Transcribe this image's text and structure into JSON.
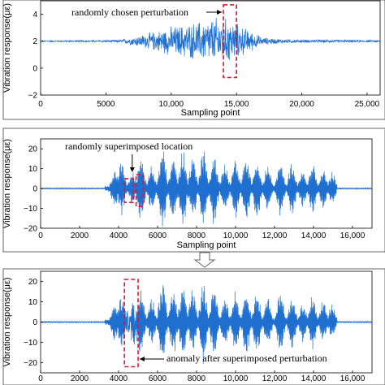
{
  "chart_data": [
    {
      "type": "line",
      "panel": "top",
      "ylabel": "Vibration response(με)",
      "xlabel": "Sampling point",
      "xlim": [
        0,
        26000
      ],
      "ylim": [
        -2,
        5
      ],
      "xticks": [
        0,
        5000,
        10000,
        15000,
        20000,
        25000
      ],
      "xtick_labels": [
        "0",
        "5000",
        "10,000",
        "15,000",
        "20,000",
        "25,000"
      ],
      "yticks": [
        -2,
        0,
        2,
        4
      ],
      "ytick_labels": [
        "−2",
        "0",
        "2",
        "4"
      ],
      "series": [
        {
          "baseline": 2,
          "color": "#1f6fd1",
          "envelope": [
            [
              0,
              0.05
            ],
            [
              6000,
              0.1
            ],
            [
              8000,
              0.6
            ],
            [
              10000,
              1.2
            ],
            [
              12000,
              1.6
            ],
            [
              13500,
              2.0
            ],
            [
              14500,
              1.8
            ],
            [
              16000,
              0.9
            ],
            [
              17000,
              0.3
            ],
            [
              19000,
              0.15
            ],
            [
              26000,
              0.08
            ]
          ]
        }
      ],
      "annotation": {
        "text": "randomly chosen perturbation",
        "box_x": [
          14000,
          15000
        ],
        "box_y": [
          -0.7,
          4.7
        ]
      }
    },
    {
      "type": "line",
      "panel": "middle",
      "ylabel": "Vibration response(με)",
      "xlabel": "Sampling point",
      "xlim": [
        0,
        17000
      ],
      "ylim": [
        -20,
        25
      ],
      "xticks": [
        0,
        2000,
        4000,
        6000,
        8000,
        10000,
        12000,
        14000,
        16000
      ],
      "xtick_labels": [
        "0",
        "2000",
        "4000",
        "6000",
        "8000",
        "10,000",
        "12,000",
        "14,000",
        "16,000"
      ],
      "yticks": [
        -20,
        -10,
        0,
        10,
        20
      ],
      "ytick_labels": [
        "−20",
        "−10",
        "0",
        "10",
        "20"
      ],
      "series": [
        {
          "baseline": 0,
          "color": "#1f6fd1"
        }
      ],
      "annotation": {
        "text": "randomly superimposed location",
        "boxes": [
          [
            4300,
            4750,
            -7,
            5
          ],
          [
            4900,
            5250,
            -9,
            7
          ]
        ]
      }
    },
    {
      "type": "line",
      "panel": "bottom",
      "ylabel": "Vibration response(με)",
      "xlabel": "",
      "xlim": [
        0,
        17000
      ],
      "ylim": [
        -25,
        25
      ],
      "xticks": [
        0,
        2000,
        4000,
        6000,
        8000,
        10000,
        12000,
        14000,
        16000
      ],
      "xtick_labels": [
        "0",
        "2000",
        "4000",
        "6000",
        "8000",
        "10,000",
        "12,000",
        "14,000",
        "16,000"
      ],
      "yticks": [
        -20,
        -10,
        0,
        10,
        20
      ],
      "ytick_labels": [
        "−20",
        "−10",
        "0",
        "10",
        "20"
      ],
      "series": [
        {
          "baseline": 0,
          "color": "#1f6fd1"
        }
      ],
      "annotation": {
        "text": "anomaly after superimposed perturbation",
        "box_x": [
          4300,
          5000
        ],
        "box_y": [
          -22,
          21
        ]
      }
    }
  ]
}
